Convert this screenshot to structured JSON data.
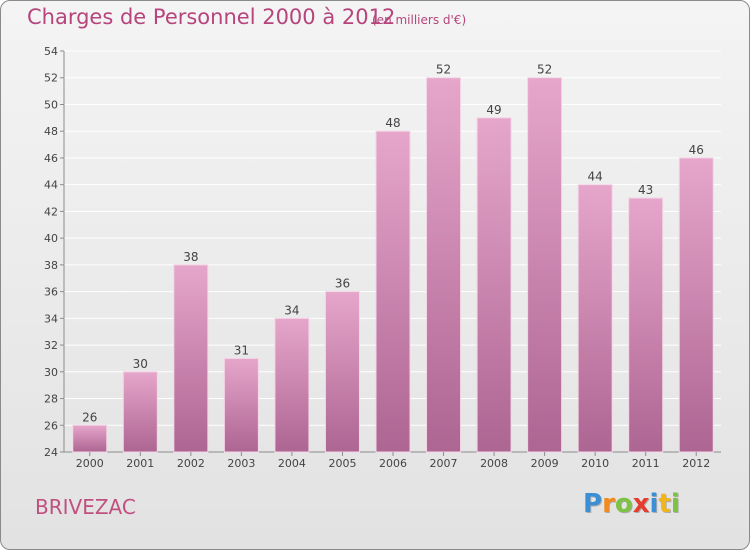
{
  "title": "Charges de Personnel 2000 à 2012",
  "subtitle": "(en milliers d'€)",
  "place": "BRIVEZAC",
  "logo": {
    "letters": [
      {
        "ch": "P",
        "color": "#3a8fd6"
      },
      {
        "ch": "r",
        "color": "#f28a1c"
      },
      {
        "ch": "o",
        "color": "#7dc242"
      },
      {
        "ch": "x",
        "color": "#e63b2e"
      },
      {
        "ch": "i",
        "color": "#3a8fd6"
      },
      {
        "ch": "t",
        "color": "#f2b41c"
      },
      {
        "ch": "i",
        "color": "#7dc242"
      }
    ]
  },
  "colors": {
    "bar_top": "#e6a6cb",
    "bar_bottom": "#ad6592",
    "title": "#b5457c",
    "axis": "#8c8c8c",
    "grid": "#ffffff"
  },
  "chart_data": {
    "type": "bar",
    "categories": [
      "2000",
      "2001",
      "2002",
      "2003",
      "2004",
      "2005",
      "2006",
      "2007",
      "2008",
      "2009",
      "2010",
      "2011",
      "2012"
    ],
    "values": [
      26,
      30,
      38,
      31,
      34,
      36,
      48,
      52,
      49,
      52,
      44,
      43,
      46
    ],
    "data_labels": [
      "26",
      "30",
      "38",
      "31",
      "34",
      "36",
      "48",
      "52",
      "49",
      "52",
      "44",
      "43",
      "46"
    ],
    "title": "Charges de Personnel 2000 à 2012",
    "xlabel": "",
    "ylabel": "",
    "ylim": [
      24,
      54
    ],
    "yticks": [
      24,
      26,
      28,
      30,
      32,
      34,
      36,
      38,
      40,
      42,
      44,
      46,
      48,
      50,
      52,
      54
    ],
    "grid": true,
    "legend": "none"
  }
}
